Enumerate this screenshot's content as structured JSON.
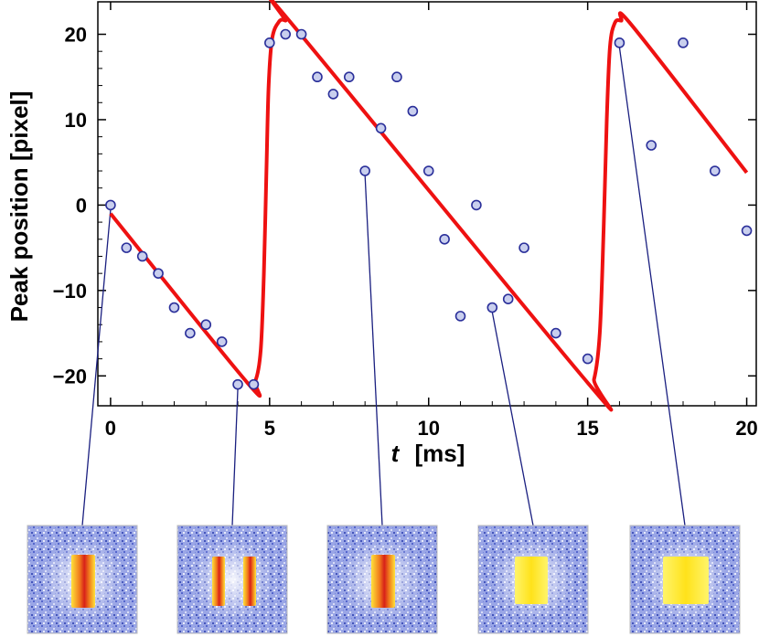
{
  "chart_data": {
    "type": "scatter",
    "xlabel_var": "t",
    "xlabel_unit": "[ms]",
    "ylabel": "Peak position [pixel]",
    "xlim": [
      -0.4,
      20.3
    ],
    "ylim": [
      -23.5,
      23.8
    ],
    "xticks": [
      0,
      5,
      10,
      15,
      20
    ],
    "yticks": [
      -20,
      -10,
      0,
      10,
      20
    ],
    "grid": false,
    "series": [
      {
        "mark": "point",
        "color": "#2a2f9a",
        "fill": "#c9cfee",
        "points": [
          [
            0,
            0
          ],
          [
            0.5,
            -5
          ],
          [
            1,
            -6
          ],
          [
            1.5,
            -8
          ],
          [
            2,
            -12
          ],
          [
            2.5,
            -15
          ],
          [
            3,
            -14
          ],
          [
            3.5,
            -16
          ],
          [
            4,
            -21
          ],
          [
            4.5,
            -21
          ],
          [
            5,
            19
          ],
          [
            5.5,
            20
          ],
          [
            6,
            20
          ],
          [
            6.5,
            15
          ],
          [
            7,
            13
          ],
          [
            7.5,
            15
          ],
          [
            8,
            4
          ],
          [
            8.5,
            9
          ],
          [
            9,
            15
          ],
          [
            9.5,
            11
          ],
          [
            10,
            4
          ],
          [
            10.5,
            -4
          ],
          [
            11,
            -13
          ],
          [
            11.5,
            0
          ],
          [
            12,
            -12
          ],
          [
            12.5,
            -11
          ],
          [
            13,
            -5
          ],
          [
            14,
            -15
          ],
          [
            15,
            -18
          ],
          [
            16,
            19
          ],
          [
            17,
            7
          ],
          [
            18,
            19
          ],
          [
            19,
            4
          ],
          [
            20,
            -3
          ]
        ]
      },
      {
        "mark": "line",
        "color": "#ee1111",
        "points": [
          [
            0,
            -1
          ],
          [
            4.3,
            -20.8
          ],
          [
            4.55,
            -20.6
          ],
          [
            4.72,
            -17
          ],
          [
            4.82,
            -8
          ],
          [
            4.9,
            4
          ],
          [
            4.97,
            14
          ],
          [
            5.08,
            19.5
          ],
          [
            5.3,
            21.5
          ],
          [
            5.5,
            21.6
          ],
          [
            5.75,
            21
          ],
          [
            15.0,
            -20.8
          ],
          [
            15.2,
            -20.4
          ],
          [
            15.38,
            -15
          ],
          [
            15.5,
            -3
          ],
          [
            15.6,
            10
          ],
          [
            15.7,
            18.5
          ],
          [
            15.85,
            21.3
          ],
          [
            16.05,
            21.6
          ],
          [
            16.4,
            21
          ],
          [
            20,
            3.8
          ]
        ]
      }
    ],
    "inset_links": [
      {
        "t": 0,
        "y": 0
      },
      {
        "t": 4,
        "y": -21
      },
      {
        "t": 8,
        "y": 4
      },
      {
        "t": 12,
        "y": -12
      },
      {
        "t": 16,
        "y": 19
      }
    ]
  },
  "insets": [
    {
      "bright_bars": 1,
      "core": "red"
    },
    {
      "bright_bars": 2,
      "core": "red"
    },
    {
      "bright_bars": 1,
      "core": "red"
    },
    {
      "bright_bars": 1,
      "core": "yellow"
    },
    {
      "bright_bars": 1,
      "core": "yellow"
    }
  ],
  "colors": {
    "axis": "#000000",
    "fit_line": "#ee1111",
    "marker_edge": "#2a2f9a",
    "marker_fill": "#c9cfee",
    "link_line": "#1a1f80"
  }
}
